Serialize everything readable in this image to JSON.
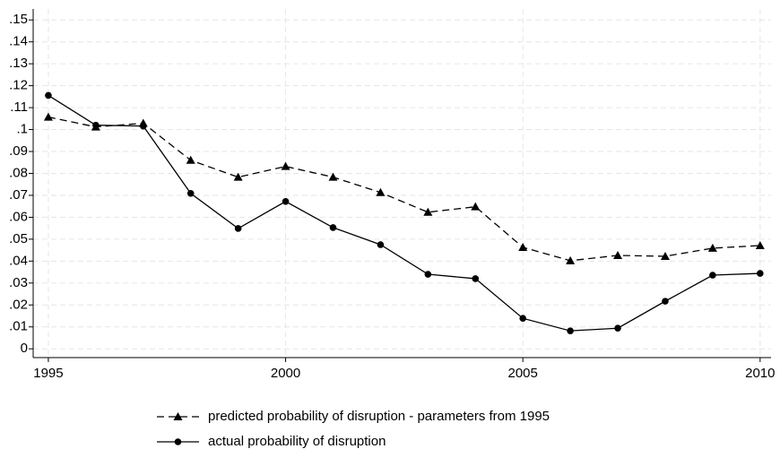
{
  "chart_data": {
    "type": "line",
    "x": [
      1995,
      1996,
      1997,
      1998,
      1999,
      2000,
      2001,
      2002,
      2003,
      2004,
      2005,
      2006,
      2007,
      2008,
      2009,
      2010
    ],
    "series": [
      {
        "name": "predicted probability of disruption - parameters from 1995",
        "color": "#000000",
        "line_style": "dashed",
        "marker": "triangle",
        "values": [
          0.1057,
          0.1012,
          0.1029,
          0.086,
          0.0783,
          0.0832,
          0.0783,
          0.0713,
          0.0623,
          0.0648,
          0.0463,
          0.0402,
          0.0426,
          0.0422,
          0.0459,
          0.0471
        ]
      },
      {
        "name": "actual probability of disruption",
        "color": "#000000",
        "line_style": "solid",
        "marker": "circle",
        "values": [
          0.1156,
          0.102,
          0.1016,
          0.0709,
          0.0549,
          0.0672,
          0.0553,
          0.0475,
          0.034,
          0.032,
          0.0139,
          0.0082,
          0.0094,
          0.0217,
          0.0336,
          0.0344
        ]
      }
    ],
    "xlim": [
      1994.68,
      2010.23
    ],
    "xticks": [
      1995,
      2000,
      2005,
      2010
    ],
    "ylim": [
      -0.004,
      0.155
    ],
    "yticks": [
      0,
      {
        "value": 0.01,
        "label": ".01"
      },
      {
        "value": 0.02,
        "label": ".02"
      },
      {
        "value": 0.03,
        "label": ".03"
      },
      {
        "value": 0.04,
        "label": ".04"
      },
      {
        "value": 0.05,
        "label": ".05"
      },
      {
        "value": 0.06,
        "label": ".06"
      },
      {
        "value": 0.07,
        "label": ".07"
      },
      {
        "value": 0.08,
        "label": ".08"
      },
      {
        "value": 0.09,
        "label": ".09"
      },
      {
        "value": 0.1,
        "label": ".1"
      },
      {
        "value": 0.11,
        "label": ".11"
      },
      {
        "value": 0.12,
        "label": ".12"
      },
      {
        "value": 0.13,
        "label": ".13"
      },
      {
        "value": 0.14,
        "label": ".14"
      },
      {
        "value": 0.15,
        "label": ".15"
      }
    ],
    "grid": true
  }
}
